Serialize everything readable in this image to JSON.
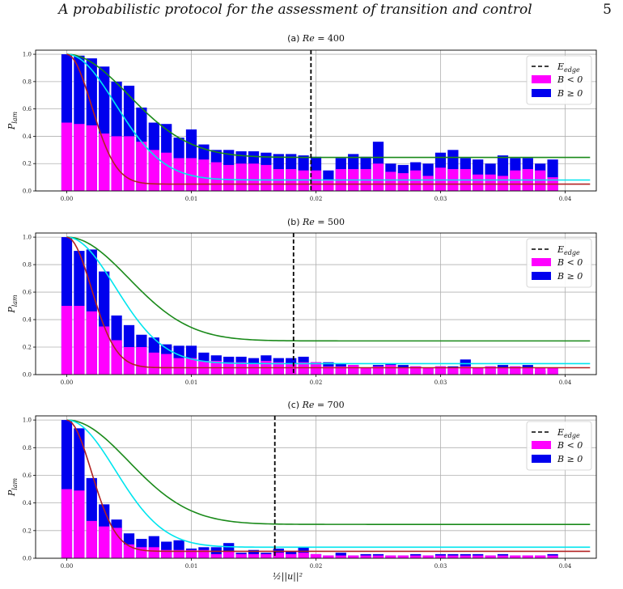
{
  "header": {
    "title": "A probabilistic protocol for the assessment of transition and control",
    "page_number": "5"
  },
  "colors": {
    "laminar_neg": "#ff00ff",
    "laminar_pos": "#0000ee",
    "edge_line": "#000000",
    "curve_red": "#b22222",
    "curve_cyan": "#00e5ee",
    "curve_green": "#1a8a1a",
    "grid": "#b0b0b0"
  },
  "chart_data": [
    {
      "type": "bar",
      "title": "(a) Re = 400",
      "ylabel": "P_lam",
      "xlabel": "",
      "xlim": [
        -0.0025,
        0.0425
      ],
      "ylim": [
        0,
        1.03
      ],
      "xticks": [
        "0.00",
        "0.01",
        "0.02",
        "0.03",
        "0.04"
      ],
      "yticks": [
        "0.0",
        "0.2",
        "0.4",
        "0.6",
        "0.8",
        "1.0"
      ],
      "grid": true,
      "legend": {
        "position": "top-right",
        "entries": [
          "E_edge",
          "B < 0",
          "B ≥ 0"
        ]
      },
      "edge_energy": 0.0196,
      "bin_width": 0.001,
      "x": [
        0.0,
        0.001,
        0.002,
        0.003,
        0.004,
        0.005,
        0.006,
        0.007,
        0.008,
        0.009,
        0.01,
        0.011,
        0.012,
        0.013,
        0.014,
        0.015,
        0.016,
        0.017,
        0.018,
        0.019,
        0.02,
        0.021,
        0.022,
        0.023,
        0.024,
        0.025,
        0.026,
        0.027,
        0.028,
        0.029,
        0.03,
        0.031,
        0.032,
        0.033,
        0.034,
        0.035,
        0.036,
        0.037,
        0.038,
        0.039
      ],
      "series": [
        {
          "name": "B < 0",
          "values": [
            0.5,
            0.49,
            0.48,
            0.42,
            0.4,
            0.4,
            0.36,
            0.3,
            0.28,
            0.24,
            0.24,
            0.23,
            0.21,
            0.19,
            0.2,
            0.2,
            0.19,
            0.16,
            0.16,
            0.15,
            0.15,
            0.08,
            0.16,
            0.16,
            0.16,
            0.2,
            0.14,
            0.13,
            0.15,
            0.11,
            0.17,
            0.16,
            0.16,
            0.12,
            0.12,
            0.11,
            0.15,
            0.16,
            0.15,
            0.1
          ]
        },
        {
          "name": "B ≥ 0",
          "values": [
            1.0,
            0.99,
            0.97,
            0.91,
            0.8,
            0.77,
            0.61,
            0.5,
            0.49,
            0.39,
            0.45,
            0.34,
            0.3,
            0.3,
            0.29,
            0.29,
            0.28,
            0.27,
            0.27,
            0.26,
            0.25,
            0.15,
            0.24,
            0.27,
            0.25,
            0.36,
            0.2,
            0.19,
            0.21,
            0.2,
            0.28,
            0.3,
            0.24,
            0.23,
            0.2,
            0.26,
            0.24,
            0.24,
            0.2,
            0.23
          ]
        }
      ],
      "curves": {
        "red": {
          "floor": 0.05,
          "scale": 0.0028
        },
        "cyan": {
          "floor": 0.08,
          "scale": 0.0055
        },
        "green": {
          "floor": 0.245,
          "scale": 0.007
        }
      }
    },
    {
      "type": "bar",
      "title": "(b) Re = 500",
      "ylabel": "P_lam",
      "xlabel": "",
      "xlim": [
        -0.0025,
        0.0425
      ],
      "ylim": [
        0,
        1.03
      ],
      "xticks": [
        "0.00",
        "0.01",
        "0.02",
        "0.03",
        "0.04"
      ],
      "yticks": [
        "0.0",
        "0.2",
        "0.4",
        "0.6",
        "0.8",
        "1.0"
      ],
      "grid": true,
      "legend": {
        "position": "top-right",
        "entries": [
          "E_edge",
          "B < 0",
          "B ≥ 0"
        ]
      },
      "edge_energy": 0.0182,
      "bin_width": 0.001,
      "x": [
        0.0,
        0.001,
        0.002,
        0.003,
        0.004,
        0.005,
        0.006,
        0.007,
        0.008,
        0.009,
        0.01,
        0.011,
        0.012,
        0.013,
        0.014,
        0.015,
        0.016,
        0.017,
        0.018,
        0.019,
        0.02,
        0.021,
        0.022,
        0.023,
        0.024,
        0.025,
        0.026,
        0.027,
        0.028,
        0.029,
        0.03,
        0.031,
        0.032,
        0.033,
        0.034,
        0.035,
        0.036,
        0.037,
        0.038,
        0.039
      ],
      "series": [
        {
          "name": "B < 0",
          "values": [
            0.5,
            0.5,
            0.46,
            0.35,
            0.25,
            0.2,
            0.2,
            0.16,
            0.15,
            0.12,
            0.12,
            0.1,
            0.1,
            0.09,
            0.09,
            0.08,
            0.1,
            0.09,
            0.08,
            0.09,
            0.09,
            0.06,
            0.06,
            0.07,
            0.05,
            0.06,
            0.07,
            0.05,
            0.06,
            0.05,
            0.06,
            0.05,
            0.06,
            0.05,
            0.06,
            0.05,
            0.06,
            0.05,
            0.05,
            0.05
          ]
        },
        {
          "name": "B ≥ 0",
          "values": [
            1.0,
            0.9,
            0.91,
            0.75,
            0.43,
            0.36,
            0.29,
            0.27,
            0.22,
            0.21,
            0.21,
            0.16,
            0.14,
            0.13,
            0.13,
            0.12,
            0.14,
            0.12,
            0.12,
            0.13,
            0.09,
            0.09,
            0.08,
            0.07,
            0.05,
            0.07,
            0.08,
            0.07,
            0.06,
            0.05,
            0.06,
            0.06,
            0.11,
            0.05,
            0.06,
            0.07,
            0.06,
            0.07,
            0.03,
            0.05
          ]
        }
      ],
      "curves": {
        "red": {
          "floor": 0.05,
          "scale": 0.0028
        },
        "cyan": {
          "floor": 0.08,
          "scale": 0.0055
        },
        "green": {
          "floor": 0.245,
          "scale": 0.007
        }
      }
    },
    {
      "type": "bar",
      "title": "(c) Re = 700",
      "ylabel": "P_lam",
      "xlabel": "½||u||²",
      "xlim": [
        -0.0025,
        0.0425
      ],
      "ylim": [
        0,
        1.03
      ],
      "xticks": [
        "0.00",
        "0.01",
        "0.02",
        "0.03",
        "0.04"
      ],
      "yticks": [
        "0.0",
        "0.2",
        "0.4",
        "0.6",
        "0.8",
        "1.0"
      ],
      "grid": true,
      "legend": {
        "position": "top-right",
        "entries": [
          "E_edge",
          "B < 0",
          "B ≥ 0"
        ]
      },
      "edge_energy": 0.0167,
      "bin_width": 0.001,
      "x": [
        0.0,
        0.001,
        0.002,
        0.003,
        0.004,
        0.005,
        0.006,
        0.007,
        0.008,
        0.009,
        0.01,
        0.011,
        0.012,
        0.013,
        0.014,
        0.015,
        0.016,
        0.017,
        0.018,
        0.019,
        0.02,
        0.021,
        0.022,
        0.023,
        0.024,
        0.025,
        0.026,
        0.027,
        0.028,
        0.029,
        0.03,
        0.031,
        0.032,
        0.033,
        0.034,
        0.035,
        0.036,
        0.037,
        0.038,
        0.039
      ],
      "series": [
        {
          "name": "B < 0",
          "values": [
            0.5,
            0.49,
            0.27,
            0.23,
            0.22,
            0.1,
            0.08,
            0.08,
            0.06,
            0.06,
            0.06,
            0.06,
            0.03,
            0.05,
            0.03,
            0.03,
            0.03,
            0.04,
            0.03,
            0.04,
            0.03,
            0.02,
            0.02,
            0.02,
            0.02,
            0.02,
            0.02,
            0.02,
            0.02,
            0.02,
            0.02,
            0.02,
            0.02,
            0.02,
            0.02,
            0.02,
            0.02,
            0.02,
            0.02,
            0.02
          ]
        },
        {
          "name": "B ≥ 0",
          "values": [
            1.0,
            0.94,
            0.58,
            0.39,
            0.28,
            0.18,
            0.14,
            0.16,
            0.12,
            0.13,
            0.07,
            0.08,
            0.08,
            0.11,
            0.04,
            0.06,
            0.04,
            0.07,
            0.05,
            0.08,
            0.03,
            0.02,
            0.04,
            0.02,
            0.03,
            0.03,
            0.02,
            0.02,
            0.03,
            0.02,
            0.03,
            0.03,
            0.03,
            0.03,
            0.02,
            0.03,
            0.02,
            0.02,
            0.02,
            0.03
          ]
        }
      ],
      "curves": {
        "red": {
          "floor": 0.05,
          "scale": 0.0028
        },
        "cyan": {
          "floor": 0.08,
          "scale": 0.0055
        },
        "green": {
          "floor": 0.245,
          "scale": 0.007
        }
      }
    }
  ]
}
